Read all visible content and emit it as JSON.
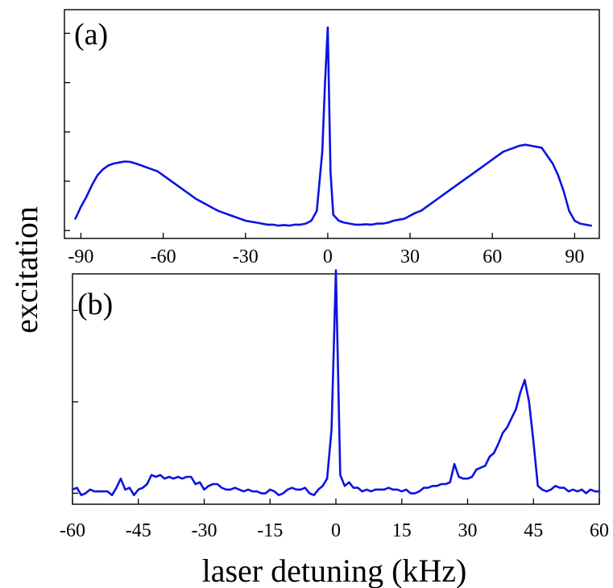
{
  "figure": {
    "ylabel": "excitation",
    "xlabel": "laser detuning (kHz)"
  },
  "colors": {
    "line": "#0a14e0"
  },
  "chart_data": [
    {
      "type": "line",
      "panel_label": "(a)",
      "xlabel": "",
      "ylabel": "",
      "xlim": [
        -96,
        99
      ],
      "ylim": [
        -0.04,
        1.12
      ],
      "xticks": [
        -90,
        -60,
        -30,
        0,
        30,
        60,
        90
      ],
      "xtick_labels": [
        "-90",
        "-60",
        "-30",
        "0",
        "30",
        "60",
        "90"
      ],
      "yticks": [
        0,
        0.25,
        0.5,
        0.75,
        1.0
      ],
      "grid": false,
      "series": [
        {
          "x": [
            -92,
            -90,
            -88,
            -86,
            -84,
            -82,
            -80,
            -78,
            -76,
            -74,
            -72,
            -70,
            -68,
            -66,
            -64,
            -62,
            -60,
            -58,
            -56,
            -54,
            -52,
            -50,
            -48,
            -46,
            -44,
            -42,
            -40,
            -38,
            -36,
            -34,
            -32,
            -30,
            -28,
            -26,
            -24,
            -22,
            -20,
            -18,
            -16,
            -14,
            -12,
            -10,
            -8,
            -6,
            -4,
            -2,
            -1,
            0,
            1,
            2,
            4,
            6,
            8,
            10,
            12,
            14,
            16,
            18,
            20,
            22,
            24,
            26,
            28,
            30,
            32,
            34,
            36,
            38,
            40,
            42,
            44,
            46,
            48,
            50,
            52,
            54,
            56,
            58,
            60,
            62,
            64,
            66,
            68,
            70,
            72,
            74,
            76,
            78,
            80,
            82,
            84,
            86,
            88,
            90,
            92,
            94,
            96
          ],
          "y": [
            0.06,
            0.12,
            0.17,
            0.23,
            0.28,
            0.31,
            0.33,
            0.34,
            0.345,
            0.35,
            0.348,
            0.34,
            0.33,
            0.32,
            0.31,
            0.3,
            0.28,
            0.26,
            0.24,
            0.22,
            0.2,
            0.18,
            0.16,
            0.145,
            0.13,
            0.115,
            0.1,
            0.09,
            0.08,
            0.07,
            0.06,
            0.05,
            0.045,
            0.04,
            0.035,
            0.03,
            0.03,
            0.025,
            0.028,
            0.025,
            0.03,
            0.03,
            0.035,
            0.05,
            0.1,
            0.4,
            0.75,
            1.03,
            0.3,
            0.08,
            0.05,
            0.04,
            0.035,
            0.03,
            0.03,
            0.032,
            0.03,
            0.035,
            0.035,
            0.04,
            0.05,
            0.055,
            0.06,
            0.075,
            0.09,
            0.1,
            0.12,
            0.14,
            0.16,
            0.18,
            0.2,
            0.22,
            0.24,
            0.26,
            0.28,
            0.3,
            0.32,
            0.34,
            0.36,
            0.38,
            0.4,
            0.41,
            0.42,
            0.43,
            0.435,
            0.43,
            0.425,
            0.42,
            0.38,
            0.34,
            0.28,
            0.2,
            0.1,
            0.05,
            0.035,
            0.03,
            0.025
          ]
        }
      ]
    },
    {
      "type": "line",
      "panel_label": "(b)",
      "xlabel": "",
      "ylabel": "",
      "xlim": [
        -60,
        60
      ],
      "ylim": [
        -0.06,
        1.2
      ],
      "xticks": [
        -60,
        -45,
        -30,
        -15,
        0,
        15,
        30,
        45,
        60
      ],
      "xtick_labels": [
        "-60",
        "-45",
        "-30",
        "-15",
        "0",
        "15",
        "30",
        "45",
        "60"
      ],
      "yticks": [
        0,
        0.5,
        1.0
      ],
      "grid": false,
      "series": [
        {
          "x": [
            -60,
            -59,
            -58,
            -57,
            -56,
            -55,
            -54,
            -53,
            -52,
            -51,
            -50,
            -49,
            -48,
            -47,
            -46,
            -45,
            -44,
            -43,
            -42,
            -41,
            -40,
            -39,
            -38,
            -37,
            -36,
            -35,
            -34,
            -33,
            -32,
            -31,
            -30,
            -29,
            -28,
            -27,
            -26,
            -25,
            -24,
            -23,
            -22,
            -21,
            -20,
            -19,
            -18,
            -17,
            -16,
            -15,
            -14,
            -13,
            -12,
            -11,
            -10,
            -9,
            -8,
            -7,
            -6,
            -5,
            -4,
            -3,
            -2,
            -1,
            0,
            1,
            2,
            3,
            4,
            5,
            6,
            7,
            8,
            9,
            10,
            11,
            12,
            13,
            14,
            15,
            16,
            17,
            18,
            19,
            20,
            21,
            22,
            23,
            24,
            25,
            26,
            27,
            28,
            29,
            30,
            31,
            32,
            33,
            34,
            35,
            36,
            37,
            38,
            39,
            40,
            41,
            42,
            43,
            44,
            45,
            46,
            47,
            48,
            49,
            50,
            51,
            52,
            53,
            54,
            55,
            56,
            57,
            58,
            59,
            60
          ],
          "y": [
            0.02,
            0.03,
            -0.01,
            0.0,
            0.02,
            0.01,
            0.01,
            0.01,
            0.01,
            -0.01,
            0.03,
            0.08,
            0.02,
            0.03,
            -0.01,
            0.02,
            0.03,
            0.05,
            0.1,
            0.09,
            0.1,
            0.08,
            0.09,
            0.08,
            0.09,
            0.08,
            0.09,
            0.09,
            0.05,
            0.06,
            0.02,
            0.04,
            0.05,
            0.05,
            0.03,
            0.02,
            0.02,
            0.03,
            0.02,
            0.01,
            0.02,
            0.01,
            0.01,
            0.0,
            0.0,
            0.02,
            0.01,
            -0.01,
            0.0,
            0.02,
            0.03,
            0.02,
            0.02,
            0.03,
            0.0,
            -0.01,
            0.02,
            0.04,
            0.08,
            0.35,
            1.22,
            0.1,
            0.04,
            0.06,
            0.03,
            0.03,
            0.01,
            0.02,
            0.01,
            0.02,
            0.02,
            0.02,
            0.03,
            0.02,
            0.02,
            0.01,
            0.02,
            0.0,
            0.0,
            0.01,
            0.03,
            0.03,
            0.04,
            0.04,
            0.05,
            0.05,
            0.06,
            0.16,
            0.09,
            0.08,
            0.08,
            0.09,
            0.13,
            0.14,
            0.15,
            0.2,
            0.22,
            0.27,
            0.33,
            0.36,
            0.41,
            0.46,
            0.55,
            0.62,
            0.5,
            0.28,
            0.04,
            0.02,
            0.01,
            0.02,
            0.04,
            0.03,
            0.03,
            0.01,
            0.02,
            0.01,
            0.02,
            0.0,
            0.02,
            0.01,
            0.01
          ]
        }
      ]
    }
  ]
}
